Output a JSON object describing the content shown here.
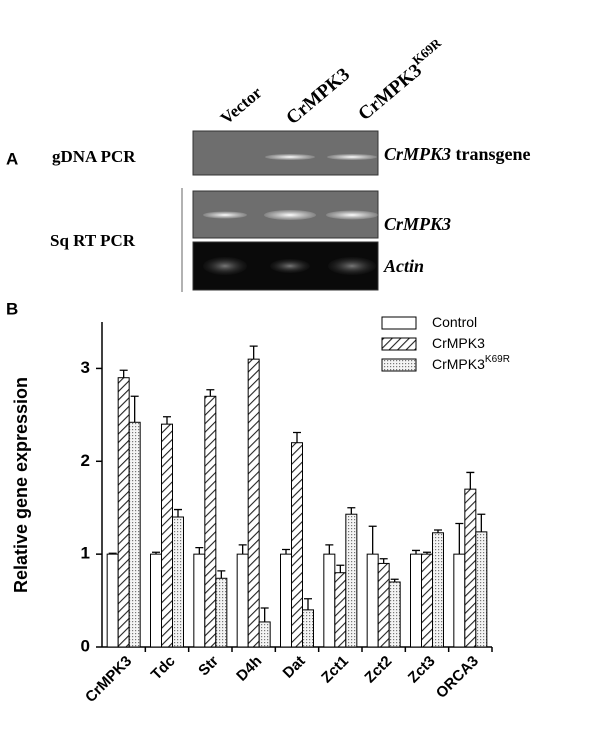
{
  "panel_a": {
    "label": "A",
    "lanes": [
      {
        "text": "Vector"
      },
      {
        "text": "CrMPK3"
      },
      {
        "text": "CrMPK3",
        "superscript": "K69R"
      }
    ],
    "row_labels": [
      "gDNA PCR",
      "Sq RT PCR"
    ],
    "gel_labels": [
      {
        "gene": "CrMPK3",
        "suffix": "transgene"
      },
      {
        "gene": "CrMPK3"
      },
      {
        "gene": "Actin"
      }
    ]
  },
  "chart_data": {
    "type": "bar",
    "panel_label": "B",
    "y_label": "Relative gene expression",
    "categories": [
      "CrMPK3",
      "Tdc",
      "Str",
      "D4h",
      "Dat",
      "Zct1",
      "Zct2",
      "Zct3",
      "ORCA3"
    ],
    "series": [
      {
        "name": "Control",
        "color": "#ffffff",
        "pattern": "none",
        "values": [
          1.0,
          1.0,
          1.0,
          1.0,
          1.0,
          1.0,
          1.0,
          1.0,
          1.0
        ],
        "errors": [
          0.01,
          0.02,
          0.07,
          0.1,
          0.05,
          0.1,
          0.3,
          0.04,
          0.33
        ]
      },
      {
        "name": "CrMPK3",
        "color": "#ffffff",
        "pattern": "hatch",
        "values": [
          2.9,
          2.4,
          2.7,
          3.1,
          2.2,
          0.8,
          0.9,
          1.0,
          1.7
        ],
        "errors": [
          0.08,
          0.08,
          0.07,
          0.14,
          0.11,
          0.08,
          0.05,
          0.02,
          0.18
        ]
      },
      {
        "name": "CrMPK3",
        "name_superscript": "K69R",
        "color": "#ffffff",
        "pattern": "dots",
        "values": [
          2.42,
          1.4,
          0.74,
          0.27,
          0.4,
          1.43,
          0.7,
          1.23,
          1.24
        ],
        "errors": [
          0.28,
          0.08,
          0.08,
          0.15,
          0.12,
          0.07,
          0.03,
          0.03,
          0.19
        ]
      }
    ],
    "ylim": [
      0,
      3.5
    ],
    "yticks": [
      0,
      1,
      2,
      3
    ],
    "grid": false
  }
}
